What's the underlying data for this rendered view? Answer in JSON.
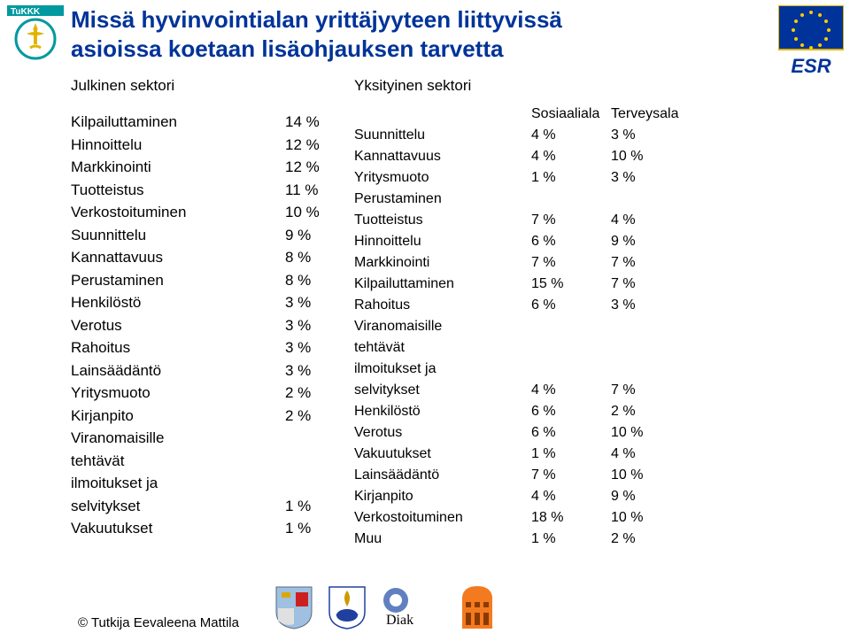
{
  "title_line1": "Missä hyvinvointialan yrittäjyyteen liittyvissä",
  "title_line2": "asioissa koetaan lisäohjauksen tarvetta",
  "public_sector_head": "Julkinen sektori",
  "public_rows": [
    {
      "label": "Kilpailuttaminen",
      "value": "14 %"
    },
    {
      "label": "Hinnoittelu",
      "value": "12 %"
    },
    {
      "label": "Markkinointi",
      "value": "12 %"
    },
    {
      "label": "Tuotteistus",
      "value": "11 %"
    },
    {
      "label": "Verkostoituminen",
      "value": "10 %"
    },
    {
      "label": "Suunnittelu",
      "value": "9 %"
    },
    {
      "label": "Kannattavuus",
      "value": "8 %"
    },
    {
      "label": "Perustaminen",
      "value": "8 %"
    },
    {
      "label": "Henkilöstö",
      "value": "3 %"
    },
    {
      "label": "Verotus",
      "value": "3 %"
    },
    {
      "label": "Rahoitus",
      "value": "3 %"
    },
    {
      "label": "Lainsäädäntö",
      "value": "3 %"
    },
    {
      "label": "Yritysmuoto",
      "value": "2 %"
    },
    {
      "label": "Kirjanpito",
      "value": "2 %"
    }
  ],
  "public_multiline_label_l1": "Viranomaisille",
  "public_multiline_label_l2": "tehtävät",
  "public_multiline_label_l3": "ilmoitukset ja",
  "public_multiline_label_l4": "selvitykset",
  "public_multiline_value": "1 %",
  "public_last": {
    "label": "Vakuutukset",
    "value": "1 %"
  },
  "private_sector_head": "Yksityinen sektori",
  "col2_head": "Sosiaaliala",
  "col3_head": "Terveysala",
  "private_rows": [
    {
      "label": "Suunnittelu",
      "v1": "4 %",
      "v2": "3 %"
    },
    {
      "label": "Kannattavuus",
      "v1": "4 %",
      "v2": "10 %"
    },
    {
      "label": "Yritysmuoto",
      "v1": "1 %",
      "v2": "3 %"
    },
    {
      "label": "Perustaminen",
      "v1": "",
      "v2": ""
    },
    {
      "label": "Tuotteistus",
      "v1": "7 %",
      "v2": "4 %"
    },
    {
      "label": "Hinnoittelu",
      "v1": "6 %",
      "v2": "9 %"
    },
    {
      "label": "Markkinointi",
      "v1": "7 %",
      "v2": "7 %"
    },
    {
      "label": "Kilpailuttaminen",
      "v1": "15 %",
      "v2": "7 %"
    },
    {
      "label": "Rahoitus",
      "v1": "6 %",
      "v2": "3 %"
    }
  ],
  "private_multiline_l1": "Viranomaisille",
  "private_multiline_l2": "tehtävät",
  "private_multiline_l3": "ilmoitukset ja",
  "private_multiline_l4": "selvitykset",
  "private_multiline_v1": "4 %",
  "private_multiline_v2": "7 %",
  "private_rows2": [
    {
      "label": "Henkilöstö",
      "v1": "6 %",
      "v2": "2 %"
    },
    {
      "label": "Verotus",
      "v1": "6 %",
      "v2": "10 %"
    },
    {
      "label": "Vakuutukset",
      "v1": "1 %",
      "v2": "4 %"
    },
    {
      "label": "Lainsäädäntö",
      "v1": "7 %",
      "v2": "10 %"
    },
    {
      "label": "Kirjanpito",
      "v1": "4 %",
      "v2": "9 %"
    },
    {
      "label": "Verkostoituminen",
      "v1": "18 %",
      "v2": "10 %"
    },
    {
      "label": "Muu",
      "v1": "1 %",
      "v2": "2 %"
    }
  ],
  "credit": "© Tutkija Eevaleena Mattila",
  "colors": {
    "title": "#003399",
    "text": "#000000",
    "tukkk_gold": "#e0b400",
    "tukkk_teal": "#0099a0",
    "eu_blue": "#003399",
    "eu_gold": "#ffcc00"
  },
  "esr_label": "ESR",
  "diak_label": "Diak"
}
